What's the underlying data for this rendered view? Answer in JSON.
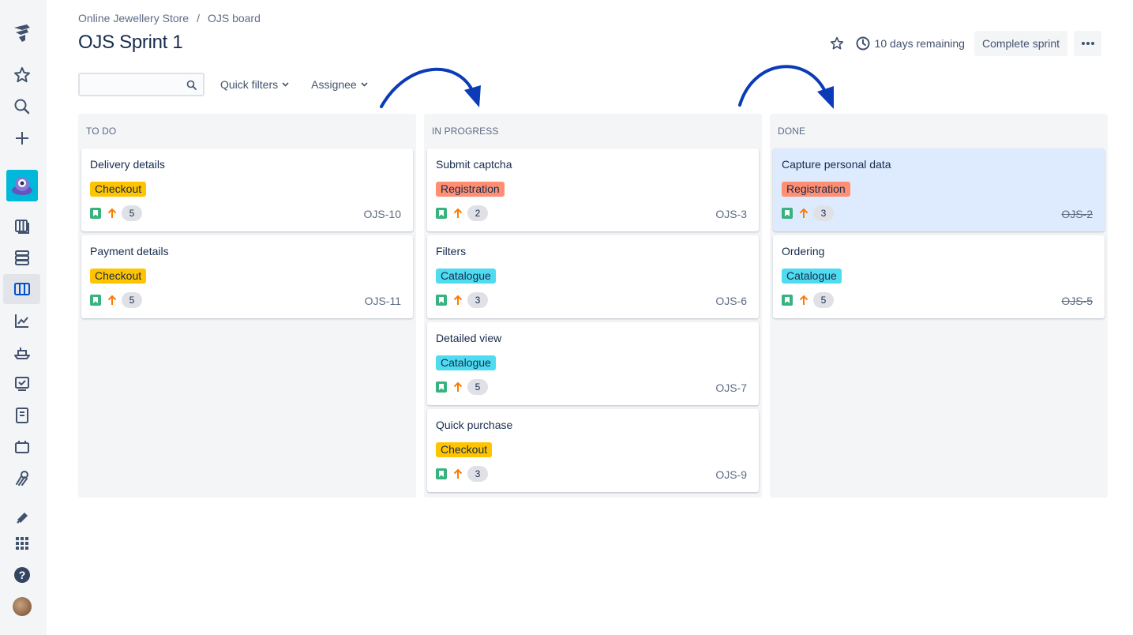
{
  "breadcrumb": {
    "project": "Online Jewellery Store",
    "separator": "/",
    "board": "OJS board"
  },
  "page_title": "OJS Sprint 1",
  "header": {
    "remaining": "10 days remaining",
    "complete_label": "Complete sprint",
    "more_label": "•••"
  },
  "filters": {
    "search_value": "",
    "search_placeholder": "",
    "quick_filters": "Quick filters",
    "assignee": "Assignee"
  },
  "colors": {
    "checkout": "#ffc400",
    "registration": "#ff8f73",
    "catalogue": "#4fdbf0",
    "accent": "#0b3bb7"
  },
  "columns": [
    {
      "title": "TO DO",
      "cards": [
        {
          "title": "Delivery details",
          "epic": "Checkout",
          "points": "5",
          "key": "OJS-10"
        },
        {
          "title": "Payment details",
          "epic": "Checkout",
          "points": "5",
          "key": "OJS-11"
        }
      ]
    },
    {
      "title": "IN PROGRESS",
      "cards": [
        {
          "title": "Submit captcha",
          "epic": "Registration",
          "points": "2",
          "key": "OJS-3"
        },
        {
          "title": "Filters",
          "epic": "Catalogue",
          "points": "3",
          "key": "OJS-6"
        },
        {
          "title": "Detailed view",
          "epic": "Catalogue",
          "points": "5",
          "key": "OJS-7"
        },
        {
          "title": "Quick purchase",
          "epic": "Checkout",
          "points": "3",
          "key": "OJS-9"
        }
      ]
    },
    {
      "title": "DONE",
      "cards": [
        {
          "title": "Capture personal data",
          "epic": "Registration",
          "points": "3",
          "key": "OJS-2"
        },
        {
          "title": "Ordering",
          "epic": "Catalogue",
          "points": "5",
          "key": "OJS-5"
        }
      ]
    }
  ],
  "sidebar_icons": [
    "jira-logo-icon",
    "star-icon",
    "search-icon",
    "plus-icon",
    "project-avatar",
    "backlog-icon",
    "roadmap-icon",
    "board-icon",
    "reports-icon",
    "releases-icon",
    "issues-icon",
    "pages-icon",
    "components-icon",
    "add-ons-icon",
    "notifications-icon",
    "app-switcher-icon",
    "help-icon",
    "user-avatar"
  ]
}
